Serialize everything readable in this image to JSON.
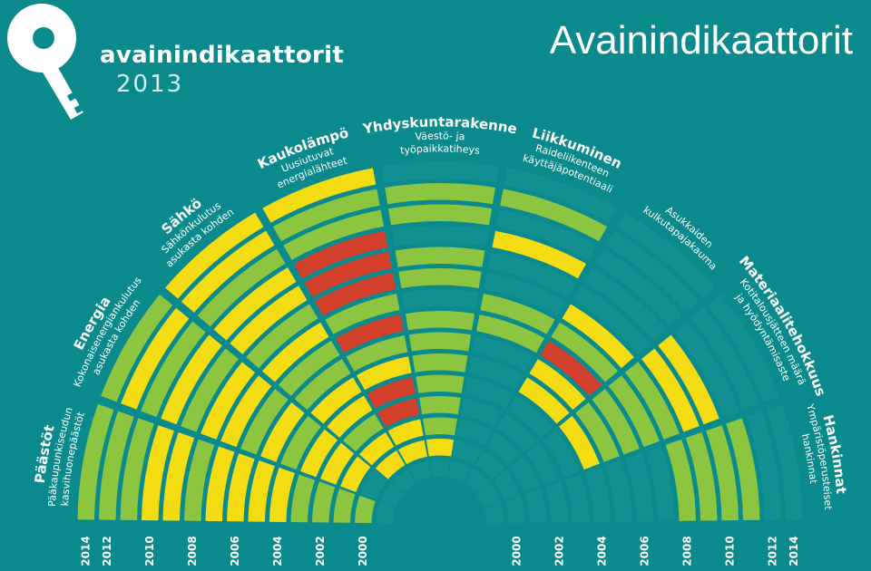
{
  "header": {
    "brand_name": "avainindikaattorit",
    "brand_year": "2013",
    "title": "Avainindikaattorit"
  },
  "colors": {
    "background": "#0b8a8d",
    "ring_empty": "#128f91",
    "green": "#8cc641",
    "yellow": "#f3dc12",
    "red": "#d2402c"
  },
  "years": [
    "2000",
    "2002",
    "2004",
    "2006",
    "2008",
    "2010",
    "2012",
    "2014"
  ],
  "categories": [
    {
      "name": "Päästöt",
      "sub": [
        "Pääkaupunkiseudun",
        "kasvihuonepäästöt"
      ]
    },
    {
      "name": "Energia",
      "sub": [
        "Kokonaisenergiankulutus",
        "asukasta kohden"
      ]
    },
    {
      "name": "Sähkö",
      "sub": [
        "Sähkönkulutus",
        "asukasta kohden"
      ]
    },
    {
      "name": "Kaukolämpö",
      "sub": [
        "Uusiutuvat",
        "energialähteet"
      ]
    },
    {
      "name": "Yhdyskuntarakenne",
      "sub": [
        "Väestö- ja",
        "työpaikkatiheys"
      ]
    },
    {
      "name": "Liikkuminen",
      "sub": [
        "Raideliikenteen",
        "käyttäjäpotentiaali"
      ]
    },
    {
      "name": "",
      "sub": [
        "Asukkaiden",
        "kulkutapajakauma"
      ]
    },
    {
      "name": "Materiaalitehokkuus",
      "sub": [
        "Kotitalousjätteen määrä",
        "ja hyödyntämisaste"
      ]
    },
    {
      "name": "Hankinnat",
      "sub": [
        "Ympäristöperusteiset",
        "hankinnat"
      ]
    }
  ],
  "ratings": [
    [
      "",
      "G",
      "G",
      "G",
      "G",
      "Y",
      "Y",
      "Y",
      "Y",
      "G",
      "Y",
      "Y",
      "G",
      "G",
      "G"
    ],
    [
      "",
      "",
      "Y",
      "Y",
      "Y",
      "G",
      "Y",
      "G",
      "Y",
      "Y",
      "G",
      "Y",
      "G",
      "Y",
      "G"
    ],
    [
      "",
      "Y",
      "Y",
      "G",
      "Y",
      "Y",
      "G",
      "G",
      "Y",
      "G",
      "Y",
      "Y",
      "G",
      "Y",
      "Y"
    ],
    [
      "",
      "Y",
      "Y",
      "R",
      "R",
      "Y",
      "G",
      "R",
      "G",
      "R",
      "R",
      "R",
      "G",
      "G",
      "Y"
    ],
    [
      "",
      "Y",
      "G",
      "G",
      "G",
      "G",
      "G",
      "G",
      "",
      "G",
      "G",
      "",
      "G",
      "G",
      ""
    ],
    [
      "",
      "",
      "",
      "",
      "",
      "",
      "",
      "G",
      "G",
      "",
      "",
      "Y",
      "",
      "G",
      ""
    ],
    [
      "",
      "",
      "",
      "",
      "",
      "Y",
      "Y",
      "R",
      "G",
      "Y",
      "",
      "",
      "",
      "",
      ""
    ],
    [
      "",
      "",
      "",
      "",
      "",
      "Y",
      "G",
      "G",
      "G",
      "G",
      "Y",
      "Y",
      "",
      "",
      " "
    ],
    [
      "",
      "",
      "",
      "",
      "",
      "",
      "",
      "",
      "",
      "G",
      "G",
      "G",
      "G",
      "",
      ""
    ]
  ]
}
